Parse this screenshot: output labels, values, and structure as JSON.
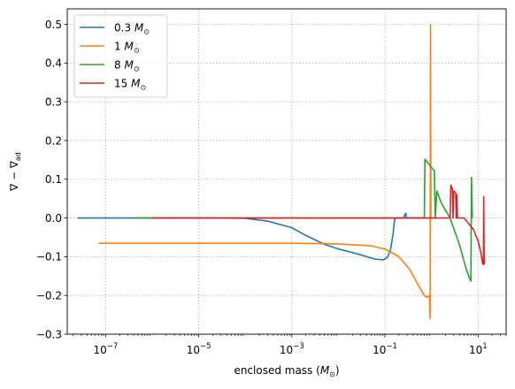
{
  "chart_data": {
    "type": "line",
    "xlabel": "enclosed mass (",
    "xlabel_unit_sym": "M",
    "xlabel_unit_sub": "⊙",
    "xlabel_close": ")",
    "ylabel_main": "∇ − ∇",
    "ylabel_sub": "ad",
    "xscale": "log",
    "xlim": [
      1.5e-08,
      40
    ],
    "ylim": [
      -0.3,
      0.54
    ],
    "grid": true,
    "legend_position": "top-left",
    "x_ticks": [
      {
        "value": 1e-07,
        "base": "10",
        "exp": "−7"
      },
      {
        "value": 1e-05,
        "base": "10",
        "exp": "−5"
      },
      {
        "value": 0.001,
        "base": "10",
        "exp": "−3"
      },
      {
        "value": 0.1,
        "base": "10",
        "exp": "−1"
      },
      {
        "value": 10,
        "base": "10",
        "exp": "1"
      }
    ],
    "y_ticks": [
      {
        "value": -0.3,
        "label": "−0.3"
      },
      {
        "value": -0.2,
        "label": "−0.2"
      },
      {
        "value": -0.1,
        "label": "−0.1"
      },
      {
        "value": 0.0,
        "label": "0.0"
      },
      {
        "value": 0.1,
        "label": "0.1"
      },
      {
        "value": 0.2,
        "label": "0.2"
      },
      {
        "value": 0.3,
        "label": "0.3"
      },
      {
        "value": 0.4,
        "label": "0.4"
      },
      {
        "value": 0.5,
        "label": "0.5"
      }
    ],
    "series": [
      {
        "name": "0.3",
        "unit_sym": "M",
        "unit_sub": "⊙",
        "color": "#1f77b4",
        "points": [
          [
            2.5e-08,
            0
          ],
          [
            1e-06,
            0
          ],
          [
            2e-05,
            0
          ],
          [
            0.0001,
            -0.001
          ],
          [
            0.0003,
            -0.008
          ],
          [
            0.001,
            -0.025
          ],
          [
            0.002,
            -0.045
          ],
          [
            0.005,
            -0.068
          ],
          [
            0.01,
            -0.08
          ],
          [
            0.03,
            -0.095
          ],
          [
            0.06,
            -0.106
          ],
          [
            0.09,
            -0.108
          ],
          [
            0.11,
            -0.103
          ],
          [
            0.13,
            -0.085
          ],
          [
            0.15,
            -0.04
          ],
          [
            0.16,
            -0.005
          ],
          [
            0.17,
            0.0
          ],
          [
            0.25,
            0.0
          ],
          [
            0.27,
            0.01
          ],
          [
            0.28,
            0.012
          ],
          [
            0.29,
            0.0
          ],
          [
            1.0,
            0.0
          ]
        ]
      },
      {
        "name": "1",
        "unit_sym": "M",
        "unit_sub": "⊙",
        "color": "#ff7f0e",
        "points": [
          [
            7e-08,
            -0.065
          ],
          [
            1e-05,
            -0.065
          ],
          [
            0.001,
            -0.065
          ],
          [
            0.01,
            -0.067
          ],
          [
            0.05,
            -0.072
          ],
          [
            0.1,
            -0.08
          ],
          [
            0.2,
            -0.1
          ],
          [
            0.35,
            -0.135
          ],
          [
            0.5,
            -0.17
          ],
          [
            0.7,
            -0.2
          ],
          [
            0.8,
            -0.205
          ],
          [
            0.9,
            -0.2
          ],
          [
            0.93,
            -0.26
          ],
          [
            0.95,
            0.5
          ],
          [
            0.97,
            0.0
          ],
          [
            1.1,
            0.0
          ]
        ]
      },
      {
        "name": "8",
        "unit_sym": "M",
        "unit_sub": "⊙",
        "color": "#2ca02c",
        "points": [
          [
            4.5e-07,
            0
          ],
          [
            1e-05,
            0
          ],
          [
            0.01,
            0
          ],
          [
            0.5,
            0
          ],
          [
            0.7,
            0
          ],
          [
            0.72,
            0.152
          ],
          [
            1.0,
            0.13
          ],
          [
            1.15,
            0.122
          ],
          [
            1.2,
            0.0
          ],
          [
            1.3,
            0.07
          ],
          [
            1.6,
            0.04
          ],
          [
            2.5,
            0.0
          ],
          [
            4.0,
            -0.07
          ],
          [
            5.5,
            -0.13
          ],
          [
            6.5,
            -0.155
          ],
          [
            7.0,
            -0.163
          ],
          [
            7.2,
            0.105
          ],
          [
            7.5,
            0.0
          ]
        ]
      },
      {
        "name": "15",
        "unit_sym": "M",
        "unit_sub": "⊙",
        "color": "#d62728",
        "points": [
          [
            1e-06,
            0
          ],
          [
            0.001,
            0
          ],
          [
            1,
            0
          ],
          [
            2.5,
            0
          ],
          [
            2.6,
            0.085
          ],
          [
            2.8,
            0.075
          ],
          [
            2.9,
            0.0
          ],
          [
            3.0,
            0.07
          ],
          [
            3.3,
            0.065
          ],
          [
            3.4,
            0.0
          ],
          [
            3.5,
            0.06
          ],
          [
            3.6,
            0.0
          ],
          [
            5,
            0.0
          ],
          [
            8,
            -0.03
          ],
          [
            10,
            -0.06
          ],
          [
            11.5,
            -0.09
          ],
          [
            12.5,
            -0.118
          ],
          [
            13,
            -0.12
          ],
          [
            13.2,
            0.055
          ],
          [
            13.5,
            -0.12
          ]
        ]
      }
    ]
  }
}
